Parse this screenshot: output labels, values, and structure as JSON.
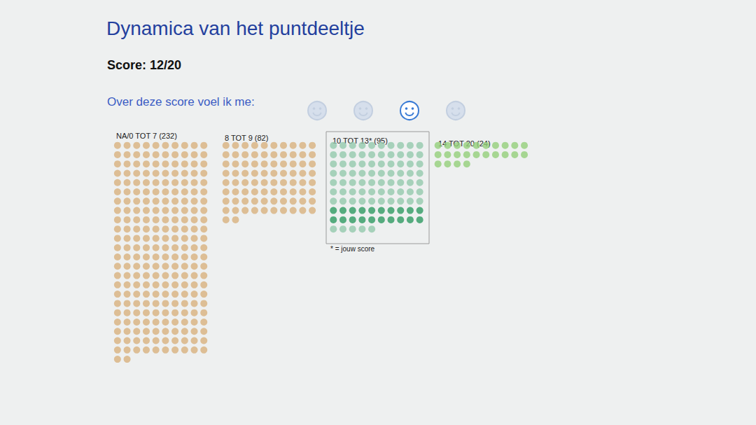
{
  "page": {
    "title": "Dynamica van het puntdeeltje",
    "score": "Score: 12/20",
    "mood_prompt": "Over deze score voel ik me:",
    "mood_icons": 4,
    "mood_selected": 3
  },
  "chart_data": {
    "type": "unit",
    "categories": [
      "NA/0 TOT 7 (232)",
      "8 TOT 9 (82)",
      "10 TOT 13* (95)",
      "14 TOT 20 (24)"
    ],
    "values": [
      232,
      82,
      95,
      24
    ],
    "colors": [
      "#d8b27e",
      "#d8b27e",
      "#93c9ad",
      "#93d07a"
    ],
    "highlight": {
      "category": "10 TOT 13* (95)",
      "start": 70,
      "count": 20,
      "color": "#2e9a62"
    },
    "footnote": "* = jouw score",
    "tick_labels": false
  }
}
